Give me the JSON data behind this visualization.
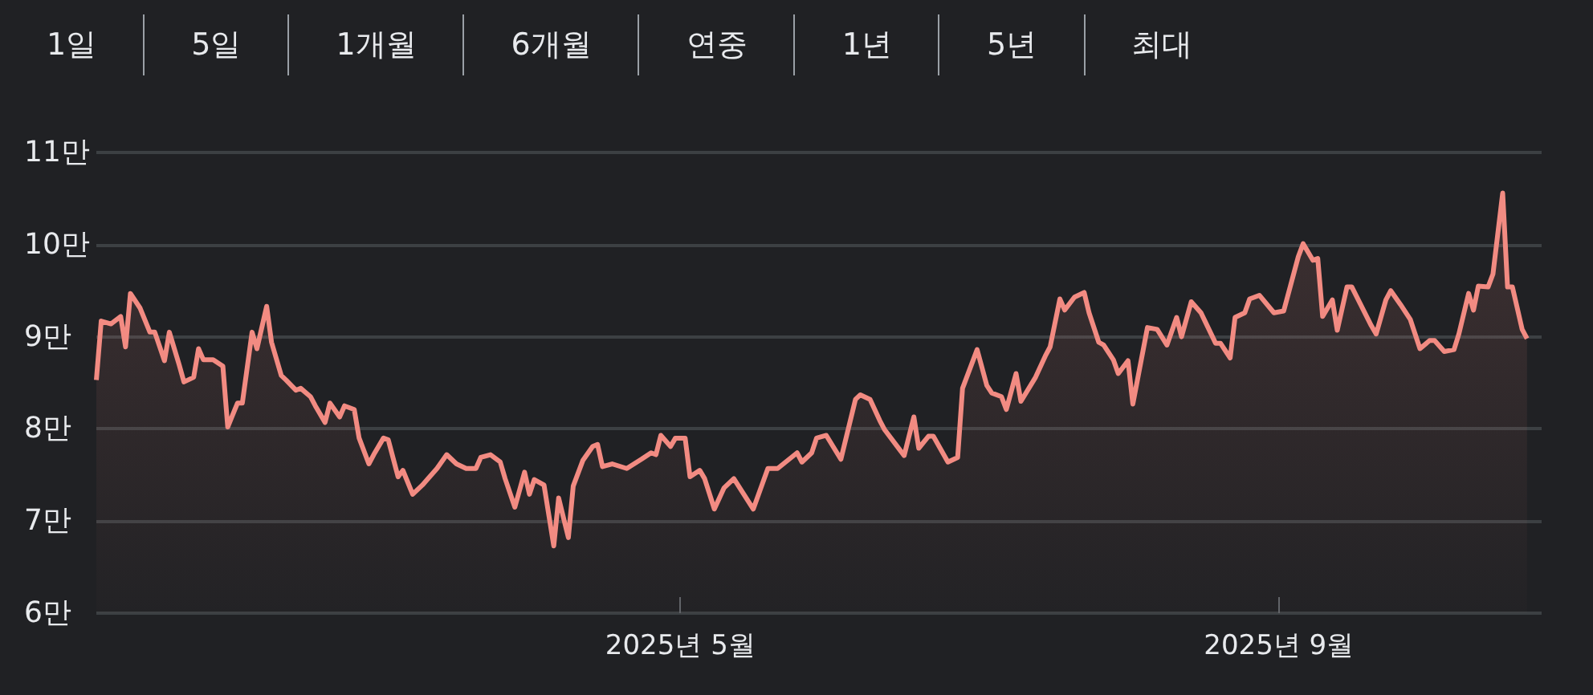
{
  "chart_data": {
    "type": "area",
    "annotations": [
      "1일",
      "5일",
      "1개월",
      "6개월",
      "연중",
      "1년",
      "5년",
      "최대"
    ],
    "x": [
      "2025-01-01",
      "2025-01-02",
      "2025-01-04",
      "2025-01-06",
      "2025-01-07",
      "2025-01-08",
      "2025-01-10",
      "2025-01-12",
      "2025-01-13",
      "2025-01-15",
      "2025-01-16",
      "2025-01-18",
      "2025-01-19",
      "2025-01-21",
      "2025-01-22",
      "2025-01-23",
      "2025-01-25",
      "2025-01-27",
      "2025-01-28",
      "2025-01-30",
      "2025-01-31",
      "2025-02-02",
      "2025-02-03",
      "2025-02-05",
      "2025-02-06",
      "2025-02-08",
      "2025-02-09",
      "2025-02-11",
      "2025-02-12",
      "2025-02-14",
      "2025-02-15",
      "2025-02-17",
      "2025-02-18",
      "2025-02-20",
      "2025-02-21",
      "2025-02-23",
      "2025-02-24",
      "2025-02-26",
      "2025-02-27",
      "2025-03-01",
      "2025-03-02",
      "2025-03-04",
      "2025-03-05",
      "2025-03-07",
      "2025-03-09",
      "2025-03-10",
      "2025-03-12",
      "2025-03-14",
      "2025-03-16",
      "2025-03-18",
      "2025-03-20",
      "2025-03-21",
      "2025-03-23",
      "2025-03-25",
      "2025-03-26",
      "2025-03-28",
      "2025-03-30",
      "2025-03-31",
      "2025-04-01",
      "2025-04-03",
      "2025-04-05",
      "2025-04-06",
      "2025-04-08",
      "2025-04-09",
      "2025-04-11",
      "2025-04-13",
      "2025-04-14",
      "2025-04-15",
      "2025-04-17",
      "2025-04-20",
      "2025-04-23",
      "2025-04-25",
      "2025-04-26",
      "2025-04-27",
      "2025-04-29",
      "2025-04-30",
      "2025-05-02",
      "2025-05-03",
      "2025-05-05",
      "2025-05-06",
      "2025-05-08",
      "2025-05-10",
      "2025-05-12",
      "2025-05-16",
      "2025-05-19",
      "2025-05-21",
      "2025-05-25",
      "2025-05-26",
      "2025-05-28",
      "2025-05-29",
      "2025-05-31",
      "2025-06-03",
      "2025-06-06",
      "2025-06-07",
      "2025-06-09",
      "2025-06-11",
      "2025-06-12",
      "2025-06-15",
      "2025-06-16",
      "2025-06-18",
      "2025-06-19",
      "2025-06-21",
      "2025-06-22",
      "2025-06-25",
      "2025-06-27",
      "2025-06-28",
      "2025-07-01",
      "2025-07-03",
      "2025-07-04",
      "2025-07-06",
      "2025-07-07",
      "2025-07-09",
      "2025-07-10",
      "2025-07-13",
      "2025-07-15",
      "2025-07-16",
      "2025-07-18",
      "2025-07-19",
      "2025-07-21",
      "2025-07-23",
      "2025-07-24",
      "2025-07-26",
      "2025-07-27",
      "2025-07-29",
      "2025-07-30",
      "2025-08-01",
      "2025-08-02",
      "2025-08-05",
      "2025-08-07",
      "2025-08-09",
      "2025-08-11",
      "2025-08-12",
      "2025-08-14",
      "2025-08-16",
      "2025-08-17",
      "2025-08-19",
      "2025-08-20",
      "2025-08-22",
      "2025-08-23",
      "2025-08-25",
      "2025-08-26",
      "2025-08-28",
      "2025-08-31",
      "2025-09-02",
      "2025-09-05",
      "2025-09-06",
      "2025-09-08",
      "2025-09-09",
      "2025-09-10",
      "2025-09-12",
      "2025-09-13",
      "2025-09-15",
      "2025-09-16",
      "2025-09-20",
      "2025-09-21",
      "2025-09-23",
      "2025-09-24",
      "2025-09-26",
      "2025-09-28",
      "2025-09-30",
      "2025-10-02",
      "2025-10-03",
      "2025-10-05",
      "2025-10-07",
      "2025-10-08",
      "2025-10-10",
      "2025-10-11",
      "2025-10-12",
      "2025-10-14",
      "2025-10-15",
      "2025-10-17",
      "2025-10-18",
      "2025-10-19",
      "2025-10-21",
      "2025-10-22"
    ],
    "series": [
      {
        "color": "#f28b82",
        "values": [
          8.53,
          9.17,
          9.14,
          9.22,
          8.89,
          9.47,
          9.31,
          9.05,
          9.05,
          8.74,
          9.05,
          8.7,
          8.51,
          8.56,
          8.87,
          8.75,
          8.75,
          8.68,
          8.02,
          8.28,
          8.28,
          9.05,
          8.87,
          9.33,
          8.94,
          8.58,
          8.53,
          8.42,
          8.44,
          8.35,
          8.25,
          8.07,
          8.28,
          8.13,
          8.25,
          8.21,
          7.9,
          7.62,
          7.72,
          7.9,
          7.88,
          7.48,
          7.55,
          7.29,
          7.39,
          7.45,
          7.57,
          7.72,
          7.62,
          7.57,
          7.57,
          7.69,
          7.72,
          7.64,
          7.46,
          7.15,
          7.53,
          7.29,
          7.45,
          7.39,
          6.73,
          7.25,
          6.82,
          7.38,
          7.66,
          7.81,
          7.83,
          7.59,
          7.62,
          7.57,
          7.67,
          7.74,
          7.72,
          7.93,
          7.81,
          7.9,
          7.9,
          7.48,
          7.55,
          7.46,
          7.13,
          7.36,
          7.46,
          7.13,
          7.57,
          7.57,
          7.74,
          7.64,
          7.74,
          7.9,
          7.93,
          7.67,
          8.32,
          8.37,
          8.32,
          8.09,
          7.99,
          7.78,
          7.71,
          8.13,
          7.79,
          7.92,
          7.92,
          7.64,
          7.69,
          8.44,
          8.86,
          8.47,
          8.39,
          8.35,
          8.21,
          8.6,
          8.3,
          8.56,
          8.79,
          8.89,
          9.41,
          9.29,
          9.43,
          9.48,
          9.26,
          8.94,
          8.91,
          8.75,
          8.6,
          8.74,
          8.27,
          9.1,
          9.08,
          8.91,
          9.21,
          9,
          9.38,
          9.26,
          9.15,
          8.93,
          8.93,
          8.77,
          9.21,
          9.26,
          9.41,
          9.45,
          9.26,
          9.28,
          9.87,
          10.01,
          9.83,
          9.85,
          9.22,
          9.4,
          9.07,
          9.54,
          9.54,
          9.12,
          9.03,
          9.4,
          9.5,
          9.35,
          9.19,
          8.87,
          8.96,
          8.96,
          8.84,
          8.86,
          9.03,
          9.47,
          9.29,
          9.55,
          9.54,
          9.68,
          10.56,
          9.54,
          9.54,
          9.08,
          8.98
        ]
      }
    ],
    "xlim": [
      "2025-01-01",
      "2025-10-25"
    ],
    "xticks": [
      {
        "value": "2025-05-01",
        "label": "2025년 5월"
      },
      {
        "value": "2025-09-01",
        "label": "2025년 9월"
      }
    ],
    "ylim": [
      6,
      11
    ],
    "yticks": [
      {
        "value": 6,
        "label": "6만"
      },
      {
        "value": 7,
        "label": "7만"
      },
      {
        "value": 8,
        "label": "8만"
      },
      {
        "value": 9,
        "label": "9만"
      },
      {
        "value": 10,
        "label": "10만"
      },
      {
        "value": 11,
        "label": "11만"
      }
    ],
    "grid": "y",
    "marker": "none"
  }
}
